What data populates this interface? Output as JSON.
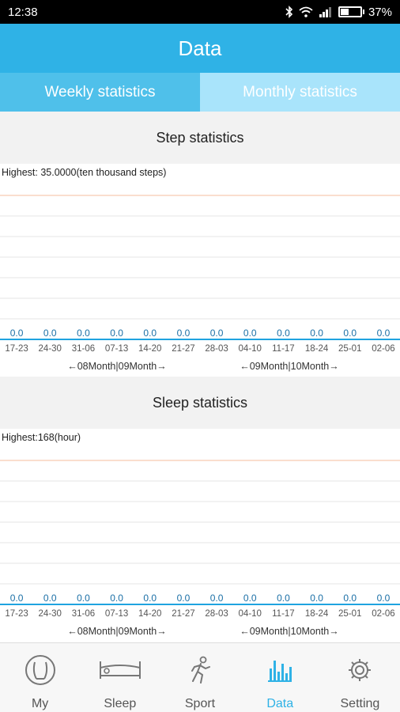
{
  "status_bar": {
    "time": "12:38",
    "battery": "37%",
    "battery_level": 0.37
  },
  "header": {
    "title": "Data"
  },
  "tabs": [
    {
      "label": "Weekly statistics",
      "active": true
    },
    {
      "label": "Monthly statistics",
      "active": false
    }
  ],
  "colors": {
    "accent": "#2fb2e6",
    "axis": "#1fa3e0",
    "highest_line": "#f6c9b0",
    "grid": "#e4e4e4"
  },
  "step": {
    "title": "Step statistics",
    "highest": "Highest: 35.0000(ten thousand steps)"
  },
  "sleep": {
    "title": "Sleep statistics",
    "highest": "Highest:168(hour)"
  },
  "chart_data": [
    {
      "type": "bar",
      "title": "Step statistics",
      "categories": [
        "17-23",
        "24-30",
        "31-06",
        "07-13",
        "14-20",
        "21-27",
        "28-03",
        "04-10",
        "11-17",
        "18-24",
        "25-01",
        "02-06"
      ],
      "values": [
        0,
        0,
        0,
        0,
        0,
        0,
        0,
        0,
        0,
        0,
        0,
        0
      ],
      "value_labels": [
        "0.0",
        "0.0",
        "0.0",
        "0.0",
        "0.0",
        "0.0",
        "0.0",
        "0.0",
        "0.0",
        "0.0",
        "0.0",
        "0.0"
      ],
      "highest": 35,
      "ylim": [
        0,
        35
      ],
      "month_markers": [
        "←08Month|09Month→",
        "←09Month|10Month→"
      ]
    },
    {
      "type": "bar",
      "title": "Sleep statistics",
      "categories": [
        "17-23",
        "24-30",
        "31-06",
        "07-13",
        "14-20",
        "21-27",
        "28-03",
        "04-10",
        "11-17",
        "18-24",
        "25-01",
        "02-06"
      ],
      "values": [
        0,
        0,
        0,
        0,
        0,
        0,
        0,
        0,
        0,
        0,
        0,
        0
      ],
      "value_labels": [
        "0.0",
        "0.0",
        "0.0",
        "0.0",
        "0.0",
        "0.0",
        "0.0",
        "0.0",
        "0.0",
        "0.0",
        "0.0",
        "0.0"
      ],
      "highest": 168,
      "ylim": [
        0,
        168
      ],
      "month_markers": [
        "←08Month|09Month→",
        "←09Month|10Month→"
      ]
    }
  ],
  "nav": [
    {
      "label": "My",
      "icon": "user-circle-icon",
      "active": false
    },
    {
      "label": "Sleep",
      "icon": "bed-icon",
      "active": false
    },
    {
      "label": "Sport",
      "icon": "running-person-icon",
      "active": false
    },
    {
      "label": "Data",
      "icon": "bar-chart-icon",
      "active": true
    },
    {
      "label": "Setting",
      "icon": "gear-icon",
      "active": false
    }
  ]
}
